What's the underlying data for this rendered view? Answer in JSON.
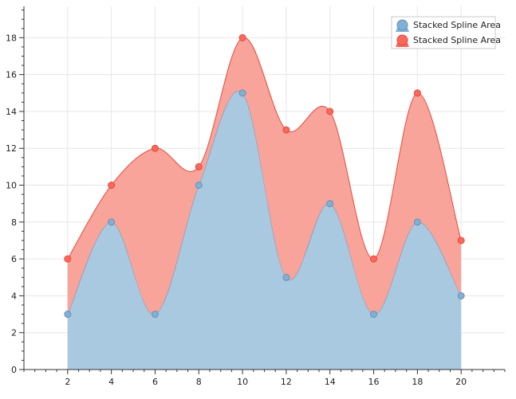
{
  "chart_data": {
    "type": "area",
    "subtype": "stacked-spline-area",
    "title": "",
    "xlabel": "",
    "ylabel": "",
    "x": [
      2,
      4,
      6,
      8,
      10,
      12,
      14,
      16,
      18,
      20
    ],
    "series": [
      {
        "name": "Stacked Spline Area",
        "values": [
          3,
          8,
          3,
          10,
          15,
          5,
          9,
          3,
          8,
          4
        ],
        "color": "#7fb0d6",
        "fill": "#a9c9e0",
        "stroke": "#6f8fb0"
      },
      {
        "name": "Stacked Spline Area",
        "values": [
          3,
          2,
          9,
          1,
          3,
          8,
          5,
          3,
          7,
          3
        ],
        "color": "#f7695c",
        "fill": "#f9a49b",
        "stroke": "#e8483a"
      }
    ],
    "stacked_totals": [
      6,
      10,
      12,
      11,
      18,
      13,
      14,
      6,
      15,
      7
    ],
    "xlim": [
      0,
      22
    ],
    "ylim": [
      0,
      19.7
    ],
    "x_ticks": [
      "2",
      "4",
      "6",
      "8",
      "10",
      "12",
      "14",
      "16",
      "18",
      "20"
    ],
    "y_ticks": [
      "0",
      "2",
      "4",
      "6",
      "8",
      "10",
      "12",
      "14",
      "16",
      "18"
    ],
    "grid": true,
    "legend_position": "top-right"
  }
}
